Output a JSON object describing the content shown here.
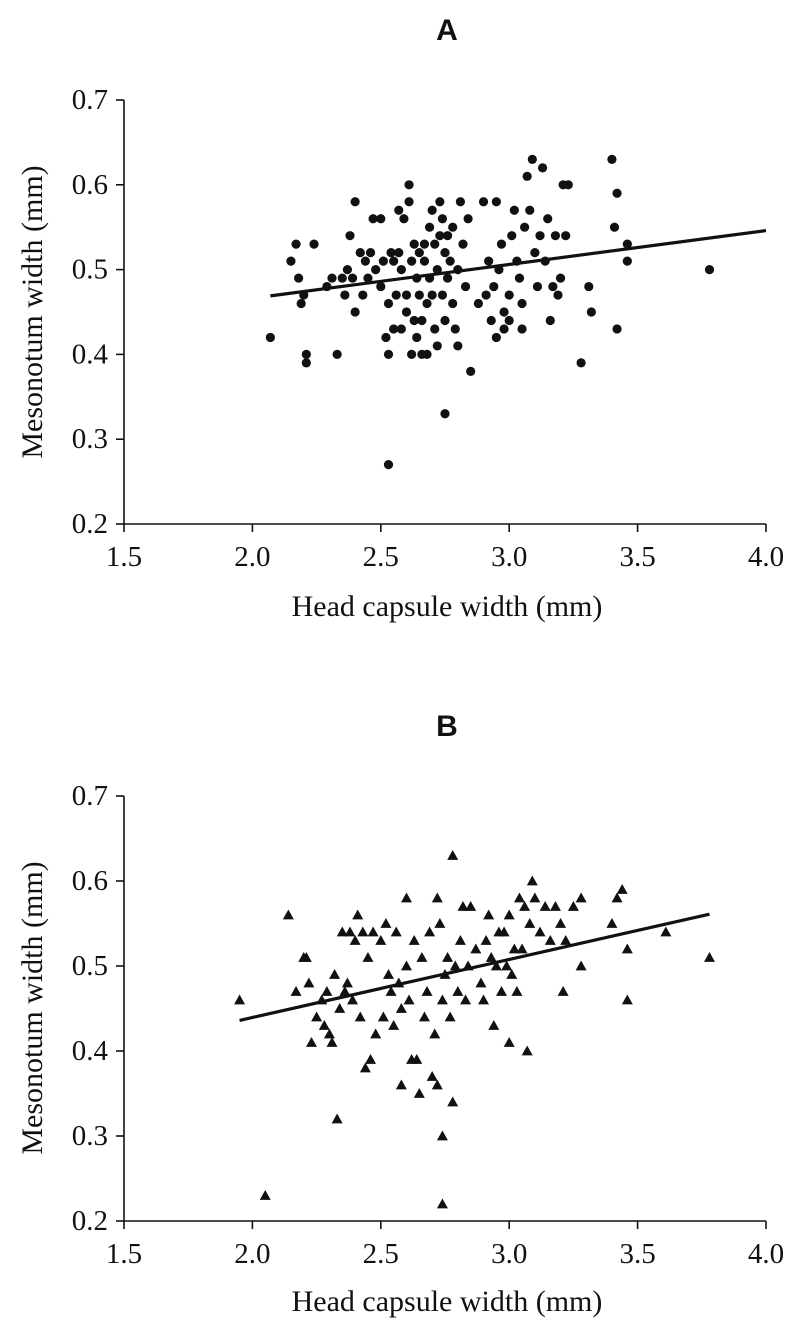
{
  "chart_data": [
    {
      "type": "scatter",
      "panel": "A",
      "xlabel": "Head capsule width (mm)",
      "ylabel": "Mesonotum width (mm)",
      "xlim": [
        1.5,
        4.0
      ],
      "ylim": [
        0.2,
        0.7
      ],
      "xticks": [
        "1.5",
        "2.0",
        "2.5",
        "3.0",
        "3.5",
        "4.0"
      ],
      "yticks": [
        "0.2",
        "0.3",
        "0.4",
        "0.5",
        "0.6",
        "0.7"
      ],
      "marker": "circle",
      "grid": false,
      "series": [
        {
          "points": [
            [
              2.07,
              0.42
            ],
            [
              2.15,
              0.51
            ],
            [
              2.17,
              0.53
            ],
            [
              2.18,
              0.49
            ],
            [
              2.19,
              0.46
            ],
            [
              2.2,
              0.47
            ],
            [
              2.21,
              0.4
            ],
            [
              2.21,
              0.39
            ],
            [
              2.24,
              0.53
            ],
            [
              2.29,
              0.48
            ],
            [
              2.31,
              0.49
            ],
            [
              2.33,
              0.4
            ],
            [
              2.35,
              0.49
            ],
            [
              2.36,
              0.47
            ],
            [
              2.37,
              0.5
            ],
            [
              2.38,
              0.54
            ],
            [
              2.39,
              0.49
            ],
            [
              2.4,
              0.45
            ],
            [
              2.4,
              0.58
            ],
            [
              2.42,
              0.52
            ],
            [
              2.43,
              0.47
            ],
            [
              2.44,
              0.51
            ],
            [
              2.45,
              0.49
            ],
            [
              2.46,
              0.52
            ],
            [
              2.47,
              0.56
            ],
            [
              2.48,
              0.5
            ],
            [
              2.5,
              0.56
            ],
            [
              2.5,
              0.48
            ],
            [
              2.51,
              0.51
            ],
            [
              2.52,
              0.42
            ],
            [
              2.53,
              0.46
            ],
            [
              2.53,
              0.4
            ],
            [
              2.53,
              0.27
            ],
            [
              2.54,
              0.52
            ],
            [
              2.55,
              0.51
            ],
            [
              2.55,
              0.43
            ],
            [
              2.56,
              0.47
            ],
            [
              2.57,
              0.52
            ],
            [
              2.57,
              0.57
            ],
            [
              2.58,
              0.5
            ],
            [
              2.58,
              0.43
            ],
            [
              2.59,
              0.56
            ],
            [
              2.6,
              0.45
            ],
            [
              2.6,
              0.47
            ],
            [
              2.61,
              0.58
            ],
            [
              2.61,
              0.6
            ],
            [
              2.62,
              0.51
            ],
            [
              2.62,
              0.4
            ],
            [
              2.63,
              0.44
            ],
            [
              2.63,
              0.53
            ],
            [
              2.64,
              0.49
            ],
            [
              2.64,
              0.42
            ],
            [
              2.65,
              0.47
            ],
            [
              2.65,
              0.52
            ],
            [
              2.66,
              0.44
            ],
            [
              2.66,
              0.4
            ],
            [
              2.67,
              0.51
            ],
            [
              2.67,
              0.53
            ],
            [
              2.68,
              0.46
            ],
            [
              2.68,
              0.4
            ],
            [
              2.69,
              0.49
            ],
            [
              2.69,
              0.55
            ],
            [
              2.7,
              0.57
            ],
            [
              2.7,
              0.47
            ],
            [
              2.71,
              0.43
            ],
            [
              2.71,
              0.53
            ],
            [
              2.72,
              0.5
            ],
            [
              2.72,
              0.41
            ],
            [
              2.73,
              0.54
            ],
            [
              2.73,
              0.58
            ],
            [
              2.74,
              0.47
            ],
            [
              2.74,
              0.56
            ],
            [
              2.75,
              0.52
            ],
            [
              2.75,
              0.44
            ],
            [
              2.75,
              0.33
            ],
            [
              2.76,
              0.49
            ],
            [
              2.76,
              0.54
            ],
            [
              2.77,
              0.51
            ],
            [
              2.78,
              0.46
            ],
            [
              2.78,
              0.55
            ],
            [
              2.79,
              0.43
            ],
            [
              2.8,
              0.41
            ],
            [
              2.8,
              0.5
            ],
            [
              2.81,
              0.58
            ],
            [
              2.82,
              0.53
            ],
            [
              2.83,
              0.48
            ],
            [
              2.84,
              0.56
            ],
            [
              2.85,
              0.38
            ],
            [
              2.88,
              0.46
            ],
            [
              2.9,
              0.58
            ],
            [
              2.91,
              0.47
            ],
            [
              2.92,
              0.51
            ],
            [
              2.93,
              0.44
            ],
            [
              2.94,
              0.48
            ],
            [
              2.95,
              0.58
            ],
            [
              2.95,
              0.42
            ],
            [
              2.96,
              0.5
            ],
            [
              2.97,
              0.53
            ],
            [
              2.98,
              0.45
            ],
            [
              2.98,
              0.43
            ],
            [
              3.0,
              0.47
            ],
            [
              3.0,
              0.44
            ],
            [
              3.01,
              0.54
            ],
            [
              3.02,
              0.57
            ],
            [
              3.03,
              0.51
            ],
            [
              3.04,
              0.49
            ],
            [
              3.05,
              0.46
            ],
            [
              3.05,
              0.43
            ],
            [
              3.06,
              0.55
            ],
            [
              3.07,
              0.61
            ],
            [
              3.08,
              0.57
            ],
            [
              3.09,
              0.63
            ],
            [
              3.1,
              0.52
            ],
            [
              3.11,
              0.48
            ],
            [
              3.12,
              0.54
            ],
            [
              3.13,
              0.62
            ],
            [
              3.14,
              0.51
            ],
            [
              3.15,
              0.56
            ],
            [
              3.16,
              0.44
            ],
            [
              3.17,
              0.48
            ],
            [
              3.18,
              0.54
            ],
            [
              3.19,
              0.47
            ],
            [
              3.2,
              0.49
            ],
            [
              3.21,
              0.6
            ],
            [
              3.22,
              0.54
            ],
            [
              3.23,
              0.6
            ],
            [
              3.28,
              0.39
            ],
            [
              3.31,
              0.48
            ],
            [
              3.32,
              0.45
            ],
            [
              3.4,
              0.63
            ],
            [
              3.41,
              0.55
            ],
            [
              3.42,
              0.59
            ],
            [
              3.42,
              0.43
            ],
            [
              3.46,
              0.53
            ],
            [
              3.46,
              0.51
            ],
            [
              3.78,
              0.5
            ]
          ]
        }
      ],
      "fit_line": [
        [
          2.07,
          0.469
        ],
        [
          4.0,
          0.546
        ]
      ]
    },
    {
      "type": "scatter",
      "panel": "B",
      "xlabel": "Head capsule width (mm)",
      "ylabel": "Mesonotum width (mm)",
      "xlim": [
        1.5,
        4.0
      ],
      "ylim": [
        0.2,
        0.7
      ],
      "xticks": [
        "1.5",
        "2.0",
        "2.5",
        "3.0",
        "3.5",
        "4.0"
      ],
      "yticks": [
        "0.2",
        "0.3",
        "0.4",
        "0.5",
        "0.6",
        "0.7"
      ],
      "marker": "triangle",
      "grid": false,
      "series": [
        {
          "points": [
            [
              1.95,
              0.46
            ],
            [
              2.05,
              0.23
            ],
            [
              2.14,
              0.56
            ],
            [
              2.17,
              0.47
            ],
            [
              2.2,
              0.51
            ],
            [
              2.21,
              0.51
            ],
            [
              2.22,
              0.48
            ],
            [
              2.23,
              0.41
            ],
            [
              2.25,
              0.44
            ],
            [
              2.27,
              0.46
            ],
            [
              2.28,
              0.43
            ],
            [
              2.29,
              0.47
            ],
            [
              2.3,
              0.42
            ],
            [
              2.31,
              0.41
            ],
            [
              2.32,
              0.49
            ],
            [
              2.33,
              0.32
            ],
            [
              2.34,
              0.45
            ],
            [
              2.35,
              0.54
            ],
            [
              2.36,
              0.47
            ],
            [
              2.37,
              0.48
            ],
            [
              2.38,
              0.54
            ],
            [
              2.39,
              0.46
            ],
            [
              2.4,
              0.53
            ],
            [
              2.41,
              0.56
            ],
            [
              2.42,
              0.44
            ],
            [
              2.43,
              0.54
            ],
            [
              2.44,
              0.38
            ],
            [
              2.45,
              0.51
            ],
            [
              2.46,
              0.39
            ],
            [
              2.47,
              0.54
            ],
            [
              2.48,
              0.42
            ],
            [
              2.5,
              0.53
            ],
            [
              2.51,
              0.44
            ],
            [
              2.52,
              0.55
            ],
            [
              2.53,
              0.49
            ],
            [
              2.54,
              0.47
            ],
            [
              2.55,
              0.43
            ],
            [
              2.56,
              0.54
            ],
            [
              2.57,
              0.48
            ],
            [
              2.58,
              0.45
            ],
            [
              2.58,
              0.36
            ],
            [
              2.6,
              0.58
            ],
            [
              2.6,
              0.5
            ],
            [
              2.61,
              0.46
            ],
            [
              2.62,
              0.39
            ],
            [
              2.63,
              0.53
            ],
            [
              2.64,
              0.39
            ],
            [
              2.65,
              0.35
            ],
            [
              2.66,
              0.51
            ],
            [
              2.67,
              0.44
            ],
            [
              2.68,
              0.47
            ],
            [
              2.69,
              0.54
            ],
            [
              2.7,
              0.37
            ],
            [
              2.71,
              0.42
            ],
            [
              2.72,
              0.36
            ],
            [
              2.72,
              0.58
            ],
            [
              2.73,
              0.55
            ],
            [
              2.74,
              0.46
            ],
            [
              2.74,
              0.3
            ],
            [
              2.74,
              0.22
            ],
            [
              2.75,
              0.49
            ],
            [
              2.76,
              0.51
            ],
            [
              2.77,
              0.44
            ],
            [
              2.78,
              0.63
            ],
            [
              2.78,
              0.34
            ],
            [
              2.79,
              0.5
            ],
            [
              2.8,
              0.47
            ],
            [
              2.81,
              0.53
            ],
            [
              2.82,
              0.57
            ],
            [
              2.83,
              0.46
            ],
            [
              2.84,
              0.5
            ],
            [
              2.85,
              0.57
            ],
            [
              2.87,
              0.52
            ],
            [
              2.89,
              0.48
            ],
            [
              2.9,
              0.46
            ],
            [
              2.91,
              0.53
            ],
            [
              2.92,
              0.56
            ],
            [
              2.93,
              0.51
            ],
            [
              2.94,
              0.43
            ],
            [
              2.95,
              0.5
            ],
            [
              2.96,
              0.54
            ],
            [
              2.97,
              0.47
            ],
            [
              2.98,
              0.54
            ],
            [
              2.99,
              0.5
            ],
            [
              3.0,
              0.56
            ],
            [
              3.0,
              0.41
            ],
            [
              3.01,
              0.49
            ],
            [
              3.02,
              0.52
            ],
            [
              3.03,
              0.47
            ],
            [
              3.04,
              0.58
            ],
            [
              3.05,
              0.52
            ],
            [
              3.06,
              0.57
            ],
            [
              3.07,
              0.4
            ],
            [
              3.08,
              0.55
            ],
            [
              3.09,
              0.6
            ],
            [
              3.1,
              0.58
            ],
            [
              3.12,
              0.54
            ],
            [
              3.14,
              0.57
            ],
            [
              3.16,
              0.53
            ],
            [
              3.18,
              0.57
            ],
            [
              3.2,
              0.55
            ],
            [
              3.21,
              0.47
            ],
            [
              3.22,
              0.53
            ],
            [
              3.25,
              0.57
            ],
            [
              3.28,
              0.58
            ],
            [
              3.28,
              0.5
            ],
            [
              3.4,
              0.55
            ],
            [
              3.42,
              0.58
            ],
            [
              3.44,
              0.59
            ],
            [
              3.46,
              0.52
            ],
            [
              3.46,
              0.46
            ],
            [
              3.61,
              0.54
            ],
            [
              3.78,
              0.51
            ]
          ]
        }
      ],
      "fit_line": [
        [
          1.95,
          0.436
        ],
        [
          3.78,
          0.561
        ]
      ]
    }
  ]
}
